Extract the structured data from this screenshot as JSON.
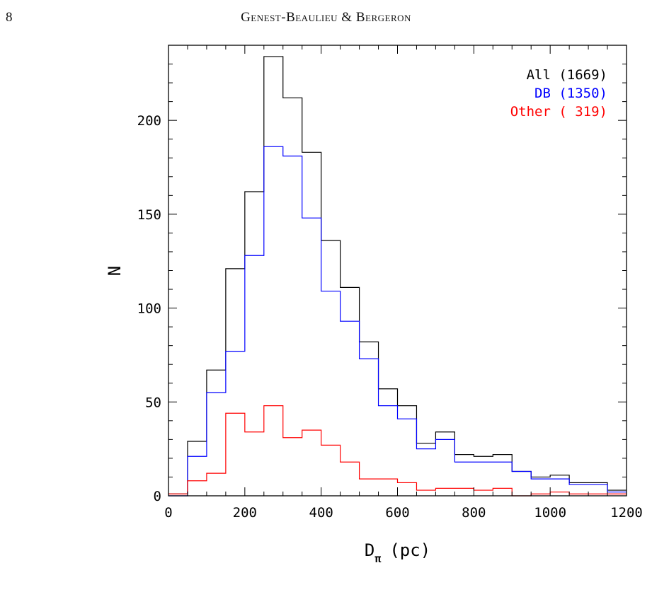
{
  "page": {
    "number": "8",
    "running_head": "Genest-Beaulieu & Bergeron"
  },
  "chart_data": {
    "type": "histogram",
    "xlabel": "D",
    "xlabel_subscript": "π",
    "xlabel_unit": "(pc)",
    "ylabel": "N",
    "xlim": [
      0,
      1200
    ],
    "ylim": [
      0,
      240
    ],
    "x_ticks": [
      0,
      200,
      400,
      600,
      800,
      1000,
      1200
    ],
    "y_ticks": [
      0,
      50,
      100,
      150,
      200
    ],
    "bin_edges": [
      0,
      50,
      100,
      150,
      200,
      250,
      300,
      350,
      400,
      450,
      500,
      550,
      600,
      650,
      700,
      750,
      800,
      850,
      900,
      950,
      1000,
      1050,
      1100,
      1150,
      1200
    ],
    "legend_position": "top-right",
    "series": [
      {
        "name": "All",
        "count_label": "(1669)",
        "color": "#000000",
        "values": [
          1,
          29,
          67,
          121,
          162,
          234,
          212,
          183,
          136,
          111,
          82,
          57,
          48,
          28,
          34,
          22,
          21,
          22,
          13,
          10,
          11,
          7,
          7,
          3
        ]
      },
      {
        "name": "DB",
        "count_label": "(1350)",
        "color": "#0000ff",
        "values": [
          0,
          21,
          55,
          77,
          128,
          186,
          181,
          148,
          109,
          93,
          73,
          48,
          41,
          25,
          30,
          18,
          18,
          18,
          13,
          9,
          9,
          6,
          6,
          2
        ]
      },
      {
        "name": "Other",
        "count_label": "( 319)",
        "color": "#ff0000",
        "values": [
          1,
          8,
          12,
          44,
          34,
          48,
          31,
          35,
          27,
          18,
          9,
          9,
          7,
          3,
          4,
          4,
          3,
          4,
          0,
          1,
          2,
          1,
          1,
          1
        ]
      }
    ]
  }
}
